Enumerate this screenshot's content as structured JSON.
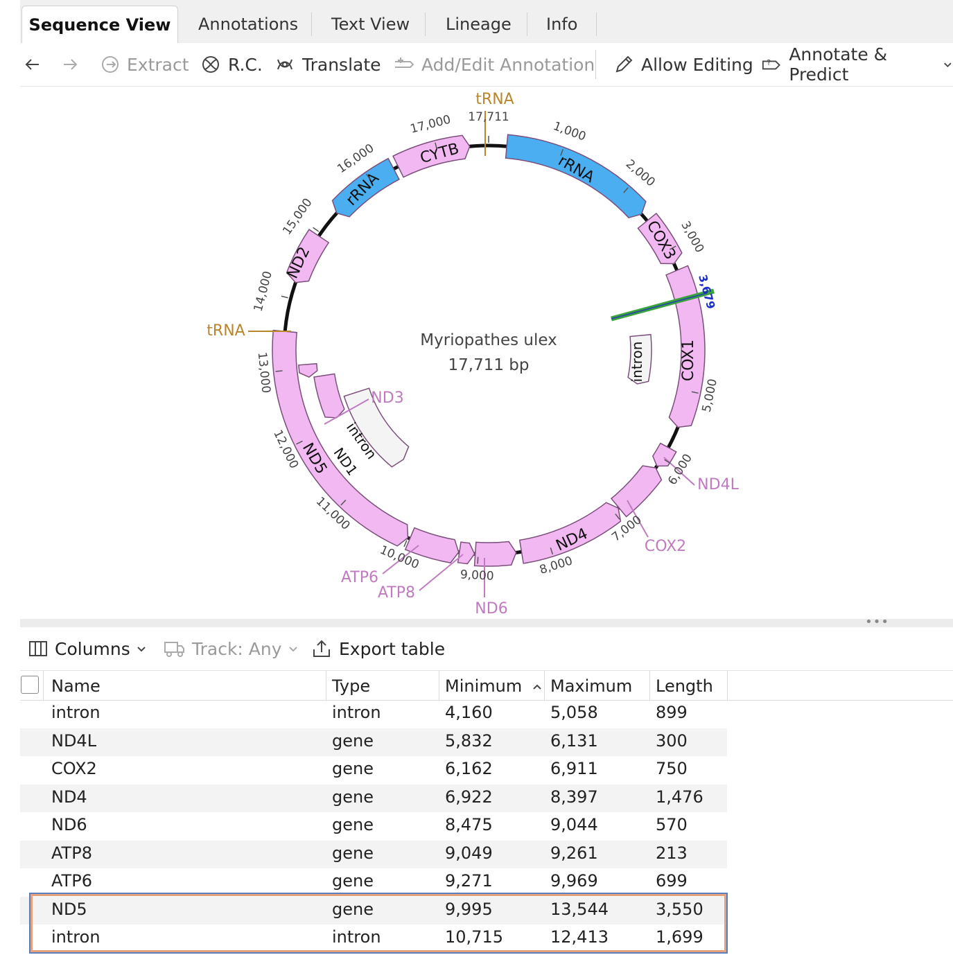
{
  "tabs": [
    {
      "label": "Sequence View",
      "active": true
    },
    {
      "label": "Annotations"
    },
    {
      "label": "Text View"
    },
    {
      "label": "Lineage"
    },
    {
      "label": "Info"
    }
  ],
  "toolbar": {
    "back_icon": "arrow-left-icon",
    "forward_icon": "arrow-right-icon",
    "extract": "Extract",
    "rc": "R.C.",
    "translate": "Translate",
    "add_edit_annotation": "Add/Edit Annotation",
    "allow_editing": "Allow Editing",
    "annotate_predict": "Annotate & Predict"
  },
  "map": {
    "organism": "Myriopathes ulex",
    "length": "17,711 bp",
    "cursor_label": "3,679",
    "ticks": [
      "1,000",
      "2,000",
      "3,000",
      "5,000",
      "6,000",
      "7,000",
      "8,000",
      "9,000",
      "10,000",
      "11,000",
      "12,000",
      "13,000",
      "14,000",
      "15,000",
      "16,000",
      "17,000",
      "17,711"
    ],
    "labels": {
      "trna_top": "tRNA",
      "trna_left": "tRNA",
      "rrna1": "rRNA",
      "rrna2": "rRNA",
      "cox3": "COX3",
      "cox1": "COX1",
      "intron_right": "intron",
      "nd4l": "ND4L",
      "cox2": "COX2",
      "nd4": "ND4",
      "nd6": "ND6",
      "atp8": "ATP8",
      "atp6": "ATP6",
      "nd5": "ND5",
      "nd1": "ND1",
      "nd3": "ND3",
      "intron_left": "intron",
      "nd2": "ND2",
      "cytb": "CYTB"
    },
    "colors": {
      "gene": "#f2b8f2",
      "rrna": "#4aaef0",
      "trna": "#b8862a",
      "intron": "#f4f4f4",
      "label": "#c07bc0"
    }
  },
  "table_toolbar": {
    "columns": "Columns",
    "track": "Track: Any",
    "export": "Export table"
  },
  "table": {
    "headers": {
      "name": "Name",
      "type": "Type",
      "minimum": "Minimum",
      "maximum": "Maximum",
      "length": "Length"
    },
    "sort_column": "Minimum",
    "rows": [
      {
        "name": "intron",
        "type": "intron",
        "min": "4,160",
        "max": "5,058",
        "len": "899"
      },
      {
        "name": "ND4L",
        "type": "gene",
        "min": "5,832",
        "max": "6,131",
        "len": "300"
      },
      {
        "name": "COX2",
        "type": "gene",
        "min": "6,162",
        "max": "6,911",
        "len": "750"
      },
      {
        "name": "ND4",
        "type": "gene",
        "min": "6,922",
        "max": "8,397",
        "len": "1,476"
      },
      {
        "name": "ND6",
        "type": "gene",
        "min": "8,475",
        "max": "9,044",
        "len": "570"
      },
      {
        "name": "ATP8",
        "type": "gene",
        "min": "9,049",
        "max": "9,261",
        "len": "213"
      },
      {
        "name": "ATP6",
        "type": "gene",
        "min": "9,271",
        "max": "9,969",
        "len": "699"
      },
      {
        "name": "ND5",
        "type": "gene",
        "min": "9,995",
        "max": "13,544",
        "len": "3,550"
      },
      {
        "name": "intron",
        "type": "intron",
        "min": "10,715",
        "max": "12,413",
        "len": "1,699"
      }
    ]
  }
}
